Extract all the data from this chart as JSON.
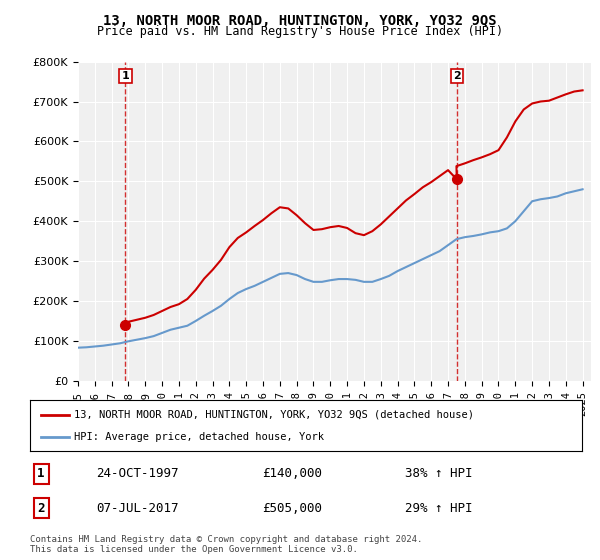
{
  "title": "13, NORTH MOOR ROAD, HUNTINGTON, YORK, YO32 9QS",
  "subtitle": "Price paid vs. HM Land Registry's House Price Index (HPI)",
  "legend_line1": "13, NORTH MOOR ROAD, HUNTINGTON, YORK, YO32 9QS (detached house)",
  "legend_line2": "HPI: Average price, detached house, York",
  "footnote": "Contains HM Land Registry data © Crown copyright and database right 2024.\nThis data is licensed under the Open Government Licence v3.0.",
  "transaction1_label": "1",
  "transaction1_date": "24-OCT-1997",
  "transaction1_price": "£140,000",
  "transaction1_hpi": "38% ↑ HPI",
  "transaction2_label": "2",
  "transaction2_date": "07-JUL-2017",
  "transaction2_price": "£505,000",
  "transaction2_hpi": "29% ↑ HPI",
  "ylim": [
    0,
    800000
  ],
  "yticks": [
    0,
    100000,
    200000,
    300000,
    400000,
    500000,
    600000,
    700000,
    800000
  ],
  "background_color": "#ffffff",
  "plot_background": "#f0f0f0",
  "grid_color": "#ffffff",
  "hpi_line_color": "#6699cc",
  "price_line_color": "#cc0000",
  "dashed_line_color": "#cc0000",
  "transaction1_x": 1997.82,
  "transaction2_x": 2017.52,
  "transaction1_y": 140000,
  "transaction2_y": 505000,
  "hpi_years": [
    1995,
    1995.5,
    1996,
    1996.5,
    1997,
    1997.5,
    1998,
    1998.5,
    1999,
    1999.5,
    2000,
    2000.5,
    2001,
    2001.5,
    2002,
    2002.5,
    2003,
    2003.5,
    2004,
    2004.5,
    2005,
    2005.5,
    2006,
    2006.5,
    2007,
    2007.5,
    2008,
    2008.5,
    2009,
    2009.5,
    2010,
    2010.5,
    2011,
    2011.5,
    2012,
    2012.5,
    2013,
    2013.5,
    2014,
    2014.5,
    2015,
    2015.5,
    2016,
    2016.5,
    2017,
    2017.5,
    2018,
    2018.5,
    2019,
    2019.5,
    2020,
    2020.5,
    2021,
    2021.5,
    2022,
    2022.5,
    2023,
    2023.5,
    2024,
    2024.5,
    2025
  ],
  "hpi_values": [
    83000,
    84000,
    86000,
    88000,
    91000,
    94000,
    99000,
    103000,
    107000,
    112000,
    120000,
    128000,
    133000,
    138000,
    150000,
    163000,
    175000,
    188000,
    205000,
    220000,
    230000,
    238000,
    248000,
    258000,
    268000,
    270000,
    265000,
    255000,
    248000,
    248000,
    252000,
    255000,
    255000,
    253000,
    248000,
    248000,
    255000,
    263000,
    275000,
    285000,
    295000,
    305000,
    315000,
    325000,
    340000,
    355000,
    360000,
    363000,
    367000,
    372000,
    375000,
    382000,
    400000,
    425000,
    450000,
    455000,
    458000,
    462000,
    470000,
    475000,
    480000
  ],
  "price_years": [
    1995,
    1995.5,
    1996,
    1996.5,
    1997,
    1997.5,
    1997.82,
    1998,
    1998.5,
    1999,
    1999.5,
    2000,
    2000.5,
    2001,
    2001.5,
    2002,
    2002.5,
    2003,
    2003.5,
    2004,
    2004.5,
    2005,
    2005.5,
    2006,
    2006.5,
    2007,
    2007.5,
    2008,
    2008.5,
    2009,
    2009.5,
    2010,
    2010.5,
    2011,
    2011.5,
    2012,
    2012.5,
    2013,
    2013.5,
    2014,
    2014.5,
    2015,
    2015.5,
    2016,
    2016.5,
    2017,
    2017.52,
    2017.5,
    2018,
    2018.5,
    2019,
    2019.5,
    2020,
    2020.5,
    2021,
    2021.5,
    2022,
    2022.5,
    2023,
    2023.5,
    2024,
    2024.5,
    2025
  ],
  "price_values": [
    null,
    null,
    null,
    null,
    null,
    null,
    140000,
    148000,
    153000,
    158000,
    165000,
    175000,
    185000,
    192000,
    205000,
    228000,
    256000,
    278000,
    303000,
    335000,
    358000,
    372000,
    388000,
    403000,
    420000,
    435000,
    432000,
    415000,
    395000,
    378000,
    380000,
    385000,
    388000,
    383000,
    370000,
    365000,
    375000,
    392000,
    412000,
    432000,
    452000,
    468000,
    485000,
    498000,
    513000,
    528000,
    505000,
    538000,
    545000,
    553000,
    560000,
    568000,
    578000,
    610000,
    650000,
    680000,
    695000,
    700000,
    702000,
    710000,
    718000,
    725000,
    728000
  ],
  "xlim_start": 1995,
  "xlim_end": 2025.5,
  "xtick_years": [
    1995,
    1996,
    1997,
    1998,
    1999,
    2000,
    2001,
    2002,
    2003,
    2004,
    2005,
    2006,
    2007,
    2008,
    2009,
    2010,
    2011,
    2012,
    2013,
    2014,
    2015,
    2016,
    2017,
    2018,
    2019,
    2020,
    2021,
    2022,
    2023,
    2024,
    2025
  ]
}
